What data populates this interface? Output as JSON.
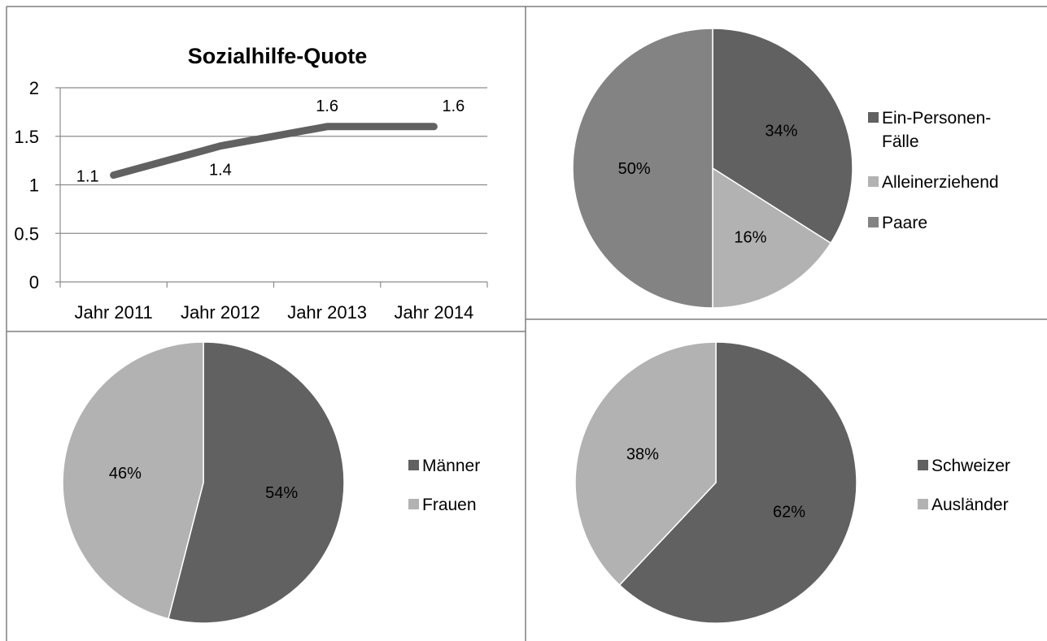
{
  "colors": {
    "dark": "#616161",
    "light": "#b2b2b2",
    "medium": "#838383",
    "grid": "#8c8c8c",
    "border": "#7f7f7f",
    "text": "#000000"
  },
  "chart_data": [
    {
      "type": "line",
      "title": "Sozialhilfe-Quote",
      "categories": [
        "Jahr 2011",
        "Jahr 2012",
        "Jahr 2013",
        "Jahr 2014"
      ],
      "series": [
        {
          "values": [
            1.1,
            1.4,
            1.6,
            1.6
          ],
          "labels": [
            "1.1",
            "1.4",
            "1.6",
            "1.6"
          ]
        }
      ],
      "ylim": [
        0,
        2
      ],
      "yticks": [
        "0",
        "0.5",
        "1",
        "1.5",
        "2"
      ],
      "grid": true,
      "legend": "none"
    },
    {
      "type": "pie",
      "slices": [
        {
          "label": "Ein-Personen-Fälle",
          "legend_lines": [
            "Ein-Personen-",
            "Fälle"
          ],
          "value": 34,
          "text": "34%",
          "color": "#616161"
        },
        {
          "label": "Alleinerziehend",
          "legend_lines": [
            "Alleinerziehend"
          ],
          "value": 16,
          "text": "16%",
          "color": "#b2b2b2"
        },
        {
          "label": "Paare",
          "legend_lines": [
            "Paare"
          ],
          "value": 50,
          "text": "50%",
          "color": "#838383"
        }
      ],
      "legend": "right"
    },
    {
      "type": "pie",
      "slices": [
        {
          "label": "Männer",
          "legend_lines": [
            "Männer"
          ],
          "value": 54,
          "text": "54%",
          "color": "#616161"
        },
        {
          "label": "Frauen",
          "legend_lines": [
            "Frauen"
          ],
          "value": 46,
          "text": "46%",
          "color": "#b2b2b2"
        }
      ],
      "legend": "right"
    },
    {
      "type": "pie",
      "slices": [
        {
          "label": "Schweizer",
          "legend_lines": [
            "Schweizer"
          ],
          "value": 62,
          "text": "62%",
          "color": "#616161"
        },
        {
          "label": "Ausländer",
          "legend_lines": [
            "Ausländer"
          ],
          "value": 38,
          "text": "38%",
          "color": "#b2b2b2"
        }
      ],
      "legend": "right"
    }
  ]
}
